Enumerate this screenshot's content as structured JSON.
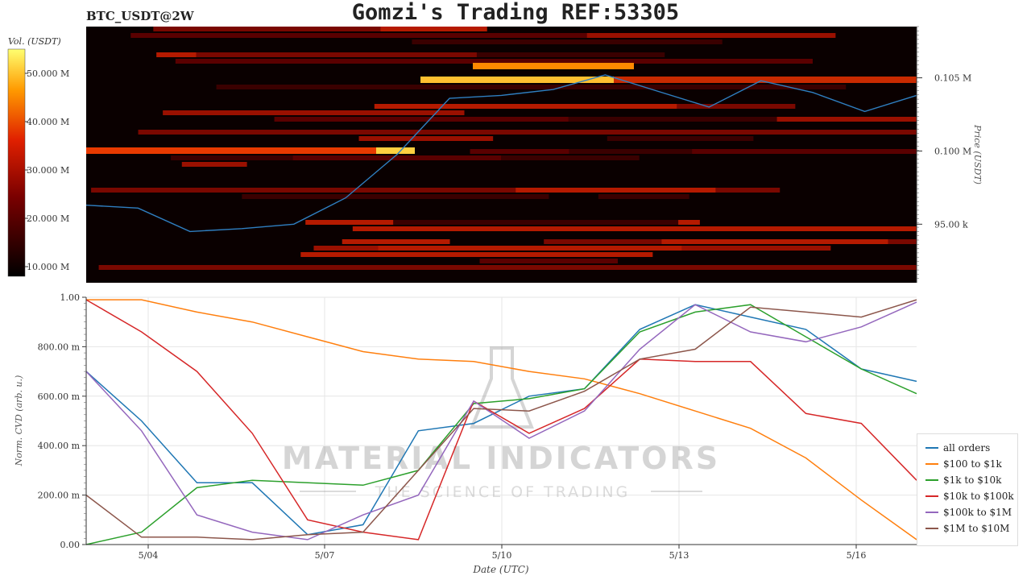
{
  "header": {
    "title": "Gomzi's Trading REF:53305",
    "symbol": "BTC_USDT@2W"
  },
  "chart_data": [
    {
      "type": "heatmap",
      "title": "",
      "colorbar_label": "Vol. (USDT)",
      "colorbar_ticks": [
        "10.000 M",
        "20.000 M",
        "30.000 M",
        "40.000 M",
        "50.000 M"
      ],
      "colorbar_range": [
        8,
        55
      ],
      "price_axis_label": "Price (USDT)",
      "price_ticks": [
        "95.00 k",
        "0.100 M",
        "0.105 M"
      ],
      "price_tick_values": [
        95000,
        100000,
        105000
      ],
      "ylim": [
        91000,
        108500
      ],
      "price_line_color": "#2f7fc1",
      "price_line": {
        "x": [
          "5/03",
          "5/04",
          "5/05",
          "5/06",
          "5/07",
          "5/08",
          "5/08 12h",
          "5/09",
          "5/10",
          "5/11",
          "5/12",
          "5/12 12h",
          "5/13",
          "5/14",
          "5/15",
          "5/16",
          "5/17"
        ],
        "y": [
          96300,
          96100,
          94500,
          94700,
          95000,
          96800,
          99800,
          103600,
          103800,
          104200,
          105200,
          104100,
          103000,
          104800,
          104000,
          102700,
          103800
        ]
      }
    },
    {
      "type": "line",
      "xlabel": "Date (UTC)",
      "ylabel": "Norm. CVD (arb. u.)",
      "x_ticks": [
        "5/04",
        "5/07",
        "5/10",
        "5/13",
        "5/16"
      ],
      "y_ticks": [
        "0.00",
        "200.00 m",
        "400.00 m",
        "600.00 m",
        "800.00 m",
        "1.00"
      ],
      "ylim": [
        0,
        1
      ],
      "x": [
        0,
        1,
        2,
        3,
        4,
        5,
        6,
        7,
        8,
        9,
        10,
        11,
        12,
        13,
        14,
        15
      ],
      "series": [
        {
          "name": "all orders",
          "color": "#1f77b4",
          "values": [
            0.7,
            0.5,
            0.25,
            0.25,
            0.04,
            0.08,
            0.46,
            0.49,
            0.6,
            0.63,
            0.87,
            0.97,
            0.92,
            0.87,
            0.71,
            0.66
          ]
        },
        {
          "name": "$100 to $1k",
          "color": "#ff7f0e",
          "values": [
            0.99,
            0.99,
            0.94,
            0.9,
            0.84,
            0.78,
            0.75,
            0.74,
            0.7,
            0.67,
            0.61,
            0.54,
            0.47,
            0.35,
            0.18,
            0.02
          ]
        },
        {
          "name": "$1k to $10k",
          "color": "#2ca02c",
          "values": [
            0.0,
            0.05,
            0.23,
            0.26,
            0.25,
            0.24,
            0.3,
            0.57,
            0.59,
            0.63,
            0.86,
            0.94,
            0.97,
            0.84,
            0.71,
            0.61
          ]
        },
        {
          "name": "$10k to $100k",
          "color": "#d62728",
          "values": [
            0.99,
            0.86,
            0.7,
            0.45,
            0.1,
            0.05,
            0.02,
            0.58,
            0.45,
            0.55,
            0.75,
            0.74,
            0.74,
            0.53,
            0.49,
            0.26
          ]
        },
        {
          "name": "$100k to $1M",
          "color": "#9467bd",
          "values": [
            0.7,
            0.46,
            0.12,
            0.05,
            0.02,
            0.12,
            0.2,
            0.58,
            0.43,
            0.54,
            0.79,
            0.97,
            0.86,
            0.82,
            0.88,
            0.98
          ]
        },
        {
          "name": "$1M to $10M",
          "color": "#8c564b",
          "values": [
            0.2,
            0.03,
            0.03,
            0.02,
            0.04,
            0.05,
            0.3,
            0.55,
            0.54,
            0.62,
            0.75,
            0.79,
            0.96,
            0.94,
            0.92,
            0.99
          ]
        }
      ]
    }
  ],
  "watermark": {
    "name": "MATERIAL INDICATORS",
    "tagline": "THE SCIENCE OF TRADING"
  }
}
